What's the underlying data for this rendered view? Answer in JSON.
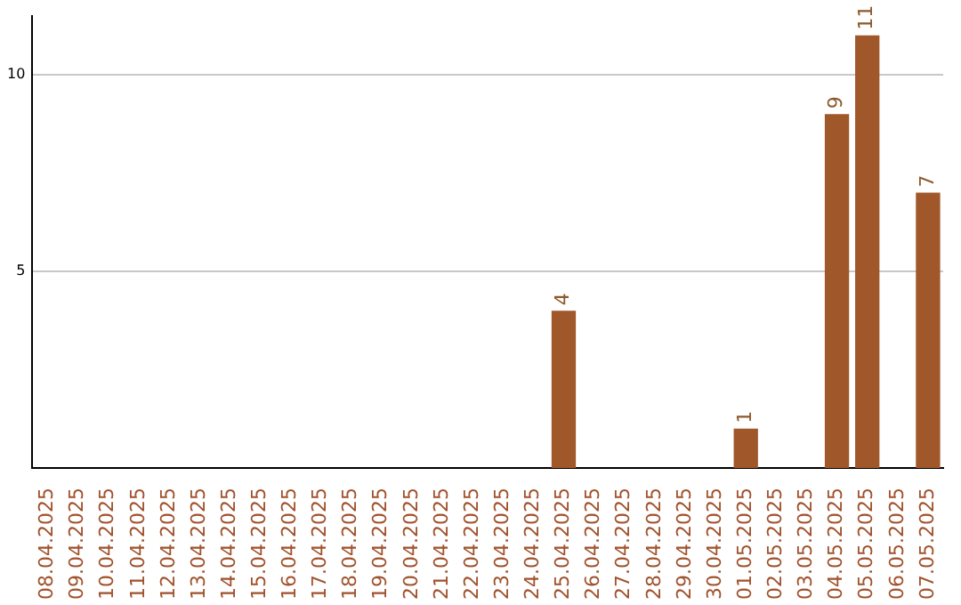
{
  "chart_data": {
    "type": "bar",
    "categories": [
      "08.04.2025",
      "09.04.2025",
      "10.04.2025",
      "11.04.2025",
      "12.04.2025",
      "13.04.2025",
      "14.04.2025",
      "15.04.2025",
      "16.04.2025",
      "17.04.2025",
      "18.04.2025",
      "19.04.2025",
      "20.04.2025",
      "21.04.2025",
      "22.04.2025",
      "23.04.2025",
      "24.04.2025",
      "25.04.2025",
      "26.04.2025",
      "27.04.2025",
      "28.04.2025",
      "29.04.2025",
      "30.04.2025",
      "01.05.2025",
      "02.05.2025",
      "03.05.2025",
      "04.05.2025",
      "05.05.2025",
      "06.05.2025",
      "07.05.2025"
    ],
    "values": [
      0,
      0,
      0,
      0,
      0,
      0,
      0,
      0,
      0,
      0,
      0,
      0,
      0,
      0,
      0,
      0,
      0,
      4,
      0,
      0,
      0,
      0,
      0,
      1,
      0,
      0,
      9,
      11,
      0,
      7
    ],
    "value_labels": [
      null,
      null,
      null,
      null,
      null,
      null,
      null,
      null,
      null,
      null,
      null,
      null,
      null,
      null,
      null,
      null,
      null,
      "4",
      null,
      null,
      null,
      null,
      null,
      "1",
      null,
      null,
      "9",
      "11",
      null,
      "7"
    ],
    "color": "#a0572a",
    "ylim": [
      0,
      11.5
    ],
    "yticks": [
      5,
      10
    ],
    "grid": "y",
    "legend": false
  }
}
